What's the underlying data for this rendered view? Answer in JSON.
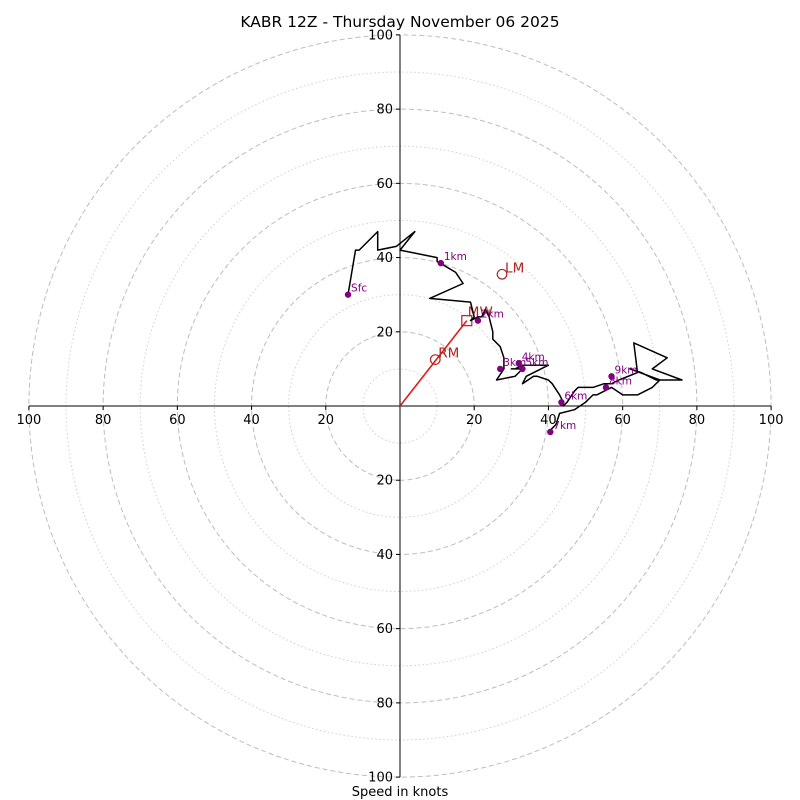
{
  "chart_data": {
    "type": "hodograph",
    "title": "KABR 12Z - Thursday November 06 2025",
    "xlabel": "Speed in knots",
    "units": "knots",
    "axis_range": [
      -100,
      100
    ],
    "ring_speeds_major": [
      20,
      40,
      60,
      80,
      100
    ],
    "ring_speeds_minor": [
      10,
      30,
      50,
      70,
      90
    ],
    "x_tick_labels": [
      "100",
      "80",
      "60",
      "40",
      "20",
      "20",
      "40",
      "60",
      "80",
      "100"
    ],
    "y_tick_labels": [
      "100",
      "80",
      "60",
      "40",
      "20",
      "20",
      "40",
      "60",
      "80",
      "100"
    ],
    "x_tick_values": [
      -100,
      -80,
      -60,
      -40,
      -20,
      20,
      40,
      60,
      80,
      100
    ],
    "y_tick_values": [
      100,
      80,
      60,
      40,
      20,
      -20,
      -40,
      -60,
      -80,
      -100
    ],
    "trace": [
      [
        -14,
        30
      ],
      [
        -12,
        42
      ],
      [
        -11,
        42
      ],
      [
        -6,
        47
      ],
      [
        -6,
        42
      ],
      [
        -1,
        43
      ],
      [
        4,
        47
      ],
      [
        0,
        42
      ],
      [
        10,
        40
      ],
      [
        10,
        39
      ],
      [
        15,
        36
      ],
      [
        17,
        33
      ],
      [
        8,
        29
      ],
      [
        19,
        28
      ],
      [
        20,
        24
      ],
      [
        19,
        23
      ],
      [
        21,
        24
      ],
      [
        22,
        24
      ],
      [
        23,
        26
      ],
      [
        24,
        24
      ],
      [
        25,
        20
      ],
      [
        25,
        18
      ],
      [
        27,
        16
      ],
      [
        28,
        13
      ],
      [
        28,
        12
      ],
      [
        28,
        10
      ],
      [
        26,
        7
      ],
      [
        31,
        8
      ],
      [
        32,
        9
      ],
      [
        33,
        10
      ],
      [
        32,
        10
      ],
      [
        30,
        10
      ],
      [
        31,
        10
      ],
      [
        33,
        11
      ],
      [
        35,
        11
      ],
      [
        37,
        11
      ],
      [
        40,
        11
      ],
      [
        34,
        8
      ],
      [
        33,
        6
      ],
      [
        36,
        8
      ],
      [
        37,
        8
      ],
      [
        40,
        7
      ],
      [
        41,
        6
      ],
      [
        43,
        3
      ],
      [
        44,
        1
      ],
      [
        44,
        0
      ],
      [
        45,
        1
      ],
      [
        47,
        4
      ],
      [
        48,
        5
      ],
      [
        50,
        5
      ],
      [
        52,
        5
      ],
      [
        55,
        6
      ],
      [
        57,
        6
      ],
      [
        59,
        7
      ],
      [
        64,
        9
      ],
      [
        63,
        17
      ],
      [
        72,
        13
      ],
      [
        68,
        10
      ],
      [
        76,
        7
      ],
      [
        69,
        7
      ],
      [
        65,
        9
      ],
      [
        62,
        10
      ],
      [
        70,
        7
      ],
      [
        68,
        5
      ],
      [
        66,
        4
      ],
      [
        64,
        3
      ],
      [
        60,
        3
      ],
      [
        57,
        5
      ],
      [
        55,
        4
      ],
      [
        53,
        3
      ],
      [
        52,
        3
      ],
      [
        50,
        1
      ],
      [
        47,
        -1
      ],
      [
        43,
        -2
      ],
      [
        42,
        -5
      ],
      [
        41,
        -6
      ],
      [
        40,
        -7
      ],
      [
        40,
        -7
      ]
    ],
    "height_markers": [
      {
        "label": "Sfc",
        "u": -14,
        "v": 30
      },
      {
        "label": "1km",
        "u": 11,
        "v": 38.5
      },
      {
        "label": "2km",
        "u": 21,
        "v": 23
      },
      {
        "label": "3km",
        "u": 27,
        "v": 10
      },
      {
        "label": "4km",
        "u": 32,
        "v": 11.5
      },
      {
        "label": "5km",
        "u": 33,
        "v": 10
      },
      {
        "label": "6km",
        "u": 43.5,
        "v": 1
      },
      {
        "label": "7km",
        "u": 40.5,
        "v": -7
      },
      {
        "label": "8km",
        "u": 55.5,
        "v": 5
      },
      {
        "label": "9km",
        "u": 57,
        "v": 8
      }
    ],
    "storm_motion": {
      "mean_wind": {
        "label": "MW",
        "u": 18,
        "v": 23
      },
      "left_mover": {
        "label": "LM",
        "u": 27.5,
        "v": 35.5
      },
      "right_mover": {
        "label": "RM",
        "u": 9.5,
        "v": 12.5
      },
      "vector_color": "#e41a1c",
      "marker_color": "#b22222"
    },
    "colors": {
      "trace": "#000000",
      "markers": "#800080",
      "major_ring": "#bdbdbd",
      "minor_ring": "#d0d0d0"
    }
  }
}
